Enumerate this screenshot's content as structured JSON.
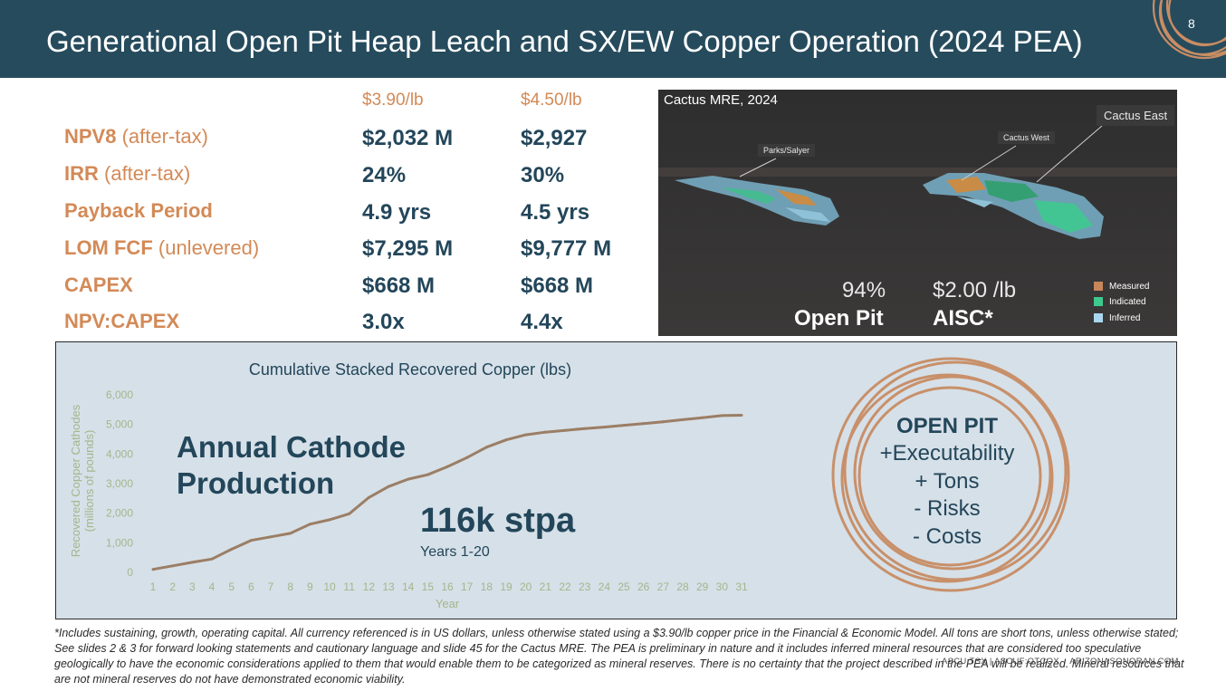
{
  "slide": {
    "title": "Generational Open Pit Heap Leach and SX/EW Copper Operation (2024 PEA)",
    "page_number": "8"
  },
  "metrics": {
    "price_headers": [
      "$3.90/lb",
      "$4.50/lb"
    ],
    "rows": [
      {
        "label": "NPV8",
        "sub": " (after-tax)",
        "v1": "$2,032 M",
        "v2": "$2,927"
      },
      {
        "label": "IRR",
        "sub": " (after-tax)",
        "v1": "24%",
        "v2": "30%"
      },
      {
        "label": "Payback Period",
        "sub": "",
        "v1": "4.9 yrs",
        "v2": "4.5 yrs"
      },
      {
        "label": "LOM FCF",
        "sub": " (unlevered)",
        "v1": "$7,295 M",
        "v2": "$9,777 M"
      },
      {
        "label": "CAPEX",
        "sub": "",
        "v1": "$668 M",
        "v2": "$668 M"
      },
      {
        "label": "NPV:CAPEX",
        "sub": "",
        "v1": "3.0x",
        "v2": "4.4x"
      }
    ]
  },
  "map": {
    "title": "Cactus MRE, 2024",
    "labels": [
      "Parks/Salyer",
      "Cactus West",
      "Cactus East"
    ],
    "stat1_value": "94%",
    "stat1_label": "Open Pit",
    "stat2_value": "$2.00 /lb",
    "stat2_label": "AISC*",
    "legend": [
      {
        "label": "Measured",
        "color": "#c8865a"
      },
      {
        "label": "Indicated",
        "color": "#3ec98f"
      },
      {
        "label": "Inferred",
        "color": "#a9d8ee"
      }
    ]
  },
  "annotations": {
    "production_line1": "Annual Cathode",
    "production_line2": "Production",
    "stpa": "116k stpa",
    "years": "Years 1-20"
  },
  "open_pit": {
    "heading": "OPEN PIT",
    "items": [
      "+Executability",
      "+ Tons",
      "- Risks",
      "- Costs"
    ]
  },
  "chart_data": {
    "type": "line",
    "title": "Cumulative Stacked Recovered Copper (lbs)",
    "xlabel": "Year",
    "ylabel": "Recovered Copper Cathodes (millions of pounds)",
    "x": [
      1,
      2,
      3,
      4,
      5,
      6,
      7,
      8,
      9,
      10,
      11,
      12,
      13,
      14,
      15,
      16,
      17,
      18,
      19,
      20,
      21,
      22,
      23,
      24,
      25,
      26,
      27,
      28,
      29,
      30,
      31
    ],
    "series": [
      {
        "values": [
          100,
          220,
          340,
          450,
          780,
          1080,
          1200,
          1320,
          1630,
          1780,
          1980,
          2530,
          2900,
          3150,
          3300,
          3570,
          3880,
          4230,
          4480,
          4650,
          4740,
          4800,
          4860,
          4910,
          4970,
          5030,
          5090,
          5160,
          5230,
          5300,
          5310
        ]
      }
    ],
    "ylim": [
      0,
      6000
    ],
    "yticks": [
      "0",
      "1,000",
      "2,000",
      "3,000",
      "4,000",
      "5,000",
      "6,000"
    ],
    "xticks": [
      "1",
      "2",
      "3",
      "4",
      "5",
      "6",
      "7",
      "8",
      "9",
      "10",
      "11",
      "12",
      "13",
      "14",
      "15",
      "16",
      "17",
      "18",
      "19",
      "20",
      "21",
      "22",
      "23",
      "24",
      "25",
      "26",
      "27",
      "28",
      "29",
      "30",
      "31"
    ],
    "line_color": "#9b7e65",
    "grid": false,
    "legend": "none"
  },
  "footnote": "*Includes sustaining, growth, operating capital. All currency referenced is in US dollars, unless otherwise stated using a $3.90/lb copper price in the Financial & Economic Model. All tons are short tons, unless otherwise stated; See slides 2 & 3 for forward looking statements and cautionary language and slide 45 for the Cactus MRE. The PEA is preliminary in nature and it includes inferred mineral resources that are considered too speculative geologically to have the economic considerations applied to them that would enable them to be categorized as mineral reserves. There is no certainty that the project described in the PEA will be realized. Mineral resources that are not mineral reserves do not have demonstrated economic viability.",
  "footer": {
    "tickers": "ASCU:TSX | ASCUF:OTCQX",
    "website": "ARIZONASONORAN.COM"
  }
}
